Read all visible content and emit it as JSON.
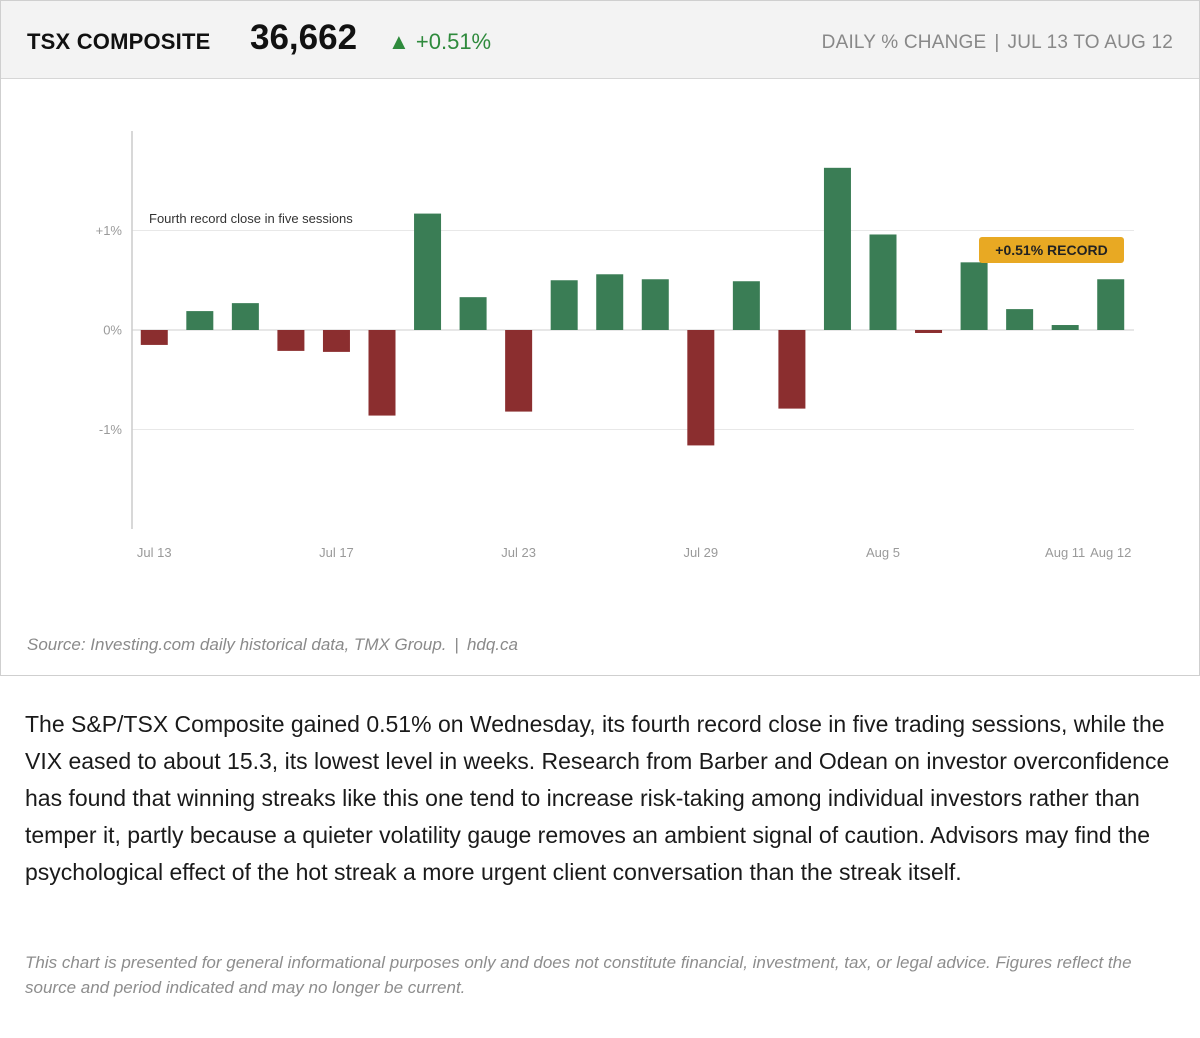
{
  "header": {
    "index_name": "TSX COMPOSITE",
    "index_value": "36,662",
    "change": "▲ +0.51%",
    "metric_label": "DAILY % CHANGE",
    "separator": "|",
    "period": "JUL 13 TO AUG 12"
  },
  "colors": {
    "positive": "#3a7d55",
    "negative": "#8b2e2f",
    "badge": "#e8a923",
    "change_text": "#2e8a3c"
  },
  "chart_data": {
    "type": "bar",
    "ylabel": "",
    "xlabel": "",
    "ylim": [
      -2,
      2
    ],
    "y_ticks": [
      {
        "value": 1,
        "label": "+1%"
      },
      {
        "value": 0,
        "label": "0%"
      },
      {
        "value": -1,
        "label": "-1%"
      }
    ],
    "x_tick_labels": [
      {
        "index": 0,
        "label": "Jul 13"
      },
      {
        "index": 4,
        "label": "Jul 17"
      },
      {
        "index": 8,
        "label": "Jul 23"
      },
      {
        "index": 12,
        "label": "Jul 29"
      },
      {
        "index": 16,
        "label": "Aug 5"
      },
      {
        "index": 20,
        "label": "Aug 11"
      },
      {
        "index": 21,
        "label": "Aug 12"
      }
    ],
    "values": [
      -0.15,
      0.19,
      0.27,
      -0.21,
      -0.22,
      -0.86,
      1.17,
      0.33,
      -0.82,
      0.5,
      0.56,
      0.51,
      -1.16,
      0.49,
      -0.79,
      1.63,
      0.96,
      -0.03,
      0.68,
      0.21,
      0.05,
      0.51
    ],
    "grid": true,
    "annotation": "Fourth record close in five sessions",
    "record_badge": "+0.51% RECORD"
  },
  "footer": {
    "source_text": "Source: Investing.com daily historical data, TMX Group.",
    "separator": "|",
    "site": "hdq.ca"
  },
  "article": {
    "paragraph": "The S&P/TSX Composite gained 0.51% on Wednesday, its fourth record close in five trading sessions, while the VIX eased to about 15.3, its lowest level in weeks. Research from Barber and Odean on investor overconfidence has found that winning streaks like this one tend to increase risk-taking among individual investors rather than temper it, partly because a quieter volatility gauge removes an ambient signal of caution. Advisors may find the psychological effect of the hot streak a more urgent client conversation than the streak itself."
  },
  "disclaimer": "This chart is presented for general informational purposes only and does not constitute financial, investment, tax, or legal advice. Figures reflect the source and period indicated and may no longer be current."
}
